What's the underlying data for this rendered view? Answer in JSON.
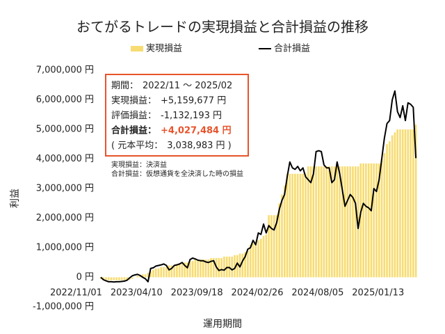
{
  "chart_data": {
    "type": "bar",
    "title": "おてがるトレードの実現損益と合計損益の推移",
    "x_label": "運用期間",
    "y_label": "利益",
    "categories": [
      "2022/11/01",
      null,
      null,
      null,
      null,
      null,
      null,
      null,
      null,
      null,
      null,
      null,
      null,
      null,
      null,
      null,
      null,
      null,
      null,
      null,
      null,
      null,
      null,
      "2023/04/10",
      null,
      null,
      null,
      null,
      null,
      null,
      null,
      null,
      null,
      null,
      null,
      null,
      null,
      null,
      null,
      null,
      null,
      null,
      null,
      null,
      null,
      null,
      "2023/09/18",
      null,
      null,
      null,
      null,
      null,
      null,
      null,
      null,
      null,
      null,
      null,
      null,
      null,
      null,
      null,
      null,
      null,
      null,
      null,
      null,
      null,
      null,
      "2024/02/26",
      null,
      null,
      null,
      null,
      null,
      null,
      null,
      null,
      null,
      null,
      null,
      null,
      null,
      null,
      null,
      null,
      null,
      null,
      null,
      null,
      null,
      null,
      "2024/08/05",
      null,
      null,
      null,
      null,
      null,
      null,
      null,
      null,
      null,
      null,
      null,
      null,
      null,
      null,
      null,
      null,
      null,
      null,
      null,
      null,
      null,
      null,
      "2025/01/13",
      null,
      null,
      null,
      null,
      null
    ],
    "series": [
      {
        "name": "実現損益",
        "type": "bar",
        "color": "#f7dc72",
        "values": [
          -50000,
          -100000,
          -100000,
          -100000,
          -100000,
          -100000,
          -100000,
          -100000,
          -100000,
          -100000,
          -100000,
          -80000,
          -50000,
          0,
          50000,
          50000,
          100000,
          100000,
          150000,
          200000,
          250000,
          300000,
          300000,
          350000,
          350000,
          350000,
          400000,
          400000,
          400000,
          450000,
          450000,
          450000,
          500000,
          500000,
          550000,
          550000,
          600000,
          600000,
          600000,
          600000,
          600000,
          600000,
          650000,
          650000,
          650000,
          650000,
          650000,
          700000,
          700000,
          700000,
          700000,
          750000,
          750000,
          800000,
          800000,
          850000,
          900000,
          1100000,
          1150000,
          1200000,
          1250000,
          1300000,
          1400000,
          1450000,
          2100000,
          2100000,
          2100000,
          2100000,
          2500000,
          2800000,
          3100000,
          3500000,
          3500000,
          3500000,
          3500000,
          3500000,
          3500000,
          3500000,
          3500000,
          3750000,
          3750000,
          3750000,
          3750000,
          3750000,
          3750000,
          3750000,
          3750000,
          3750000,
          3750000,
          3750000,
          3750000,
          3750000,
          3750000,
          3750000,
          3750000,
          3750000,
          3750000,
          3750000,
          3750000,
          3850000,
          3850000,
          3850000,
          3850000,
          3850000,
          3850000,
          3850000,
          3850000,
          4000000,
          4200000,
          4500000,
          4600000,
          4800000,
          4900000,
          5000000,
          5000000,
          5000000,
          5000000,
          5000000,
          5000000,
          5000000,
          5159677
        ]
      },
      {
        "name": "合計損益",
        "type": "line",
        "color": "#000000",
        "values": [
          0,
          -80000,
          -120000,
          -150000,
          -150000,
          -160000,
          -150000,
          -150000,
          -140000,
          -130000,
          -100000,
          -20000,
          50000,
          80000,
          100000,
          60000,
          0,
          -50000,
          -150000,
          300000,
          320000,
          380000,
          400000,
          420000,
          450000,
          400000,
          250000,
          300000,
          400000,
          420000,
          450000,
          500000,
          400000,
          320000,
          600000,
          650000,
          620000,
          580000,
          560000,
          560000,
          520000,
          500000,
          540000,
          560000,
          350000,
          230000,
          260000,
          240000,
          330000,
          330000,
          250000,
          300000,
          480000,
          350000,
          550000,
          700000,
          950000,
          1000000,
          1250000,
          1100000,
          1500000,
          1450000,
          1800000,
          1500000,
          1750000,
          1650000,
          1600000,
          1850000,
          2300000,
          2600000,
          2800000,
          3400000,
          3900000,
          3700000,
          3650000,
          3750000,
          3600000,
          3700000,
          3400000,
          3300000,
          3200000,
          3500000,
          4250000,
          4280000,
          4250000,
          3800000,
          3700000,
          3700000,
          3200000,
          3300000,
          3900000,
          3500000,
          2950000,
          2400000,
          2600000,
          2800000,
          2700000,
          2500000,
          1650000,
          2200000,
          2500000,
          2400000,
          2350000,
          2250000,
          3000000,
          2900000,
          3300000,
          4000000,
          4700000,
          5200000,
          5300000,
          6000000,
          6300000,
          5600000,
          5400000,
          5800000,
          5300000,
          5900000,
          5850000,
          5750000,
          4027484
        ]
      }
    ],
    "ylim": [
      -1000000,
      7000000
    ],
    "yticks": [
      {
        "value": -1000000,
        "label": "-1,000,000 円"
      },
      {
        "value": 0,
        "label": "0 円"
      },
      {
        "value": 1000000,
        "label": "1,000,000 円"
      },
      {
        "value": 2000000,
        "label": "2,000,000 円"
      },
      {
        "value": 3000000,
        "label": "3,000,000 円"
      },
      {
        "value": 4000000,
        "label": "4,000,000 円"
      },
      {
        "value": 5000000,
        "label": "5,000,000 円"
      },
      {
        "value": 6000000,
        "label": "6,000,000 円"
      },
      {
        "value": 7000000,
        "label": "7,000,000 円"
      }
    ],
    "grid": false,
    "legend": "top",
    "info_box": {
      "border_color": "#e8532b",
      "lines": [
        {
          "label": "期間：",
          "value": "2022/11 ～ 2025/02"
        },
        {
          "label": "実現損益：",
          "value": "+5,159,677 円"
        },
        {
          "label": "評価損益：",
          "value": "-1,132,193 円"
        },
        {
          "label": "合計損益：",
          "value": "+4,027,484 円",
          "bold": true,
          "value_color": "#e8532b"
        },
        {
          "label": "( 元本平均：",
          "value": "3,038,983 円 )"
        }
      ],
      "notes": [
        "実現損益：決済益",
        "合計損益：仮想通貨を全決済した時の損益"
      ]
    }
  }
}
